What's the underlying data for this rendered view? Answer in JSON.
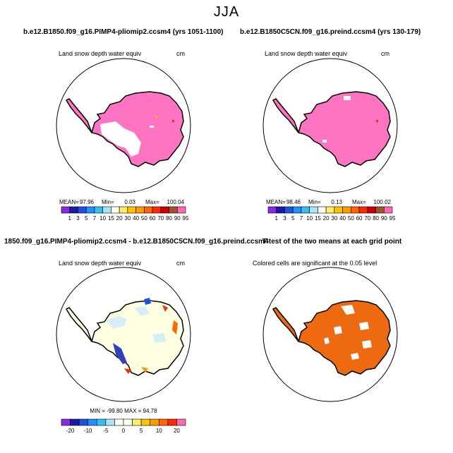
{
  "season": "JJA",
  "panels": [
    {
      "title": "b.e12.B1850.f09_g16.PIMP4-pliomip2.ccsm4 (yrs 1051-1100)",
      "subtitle": "Land snow depth water equiv",
      "units": "cm",
      "stats": {
        "mean_label": "MEAN=",
        "mean": "97.96",
        "min_label": "Min=",
        "min": "0.03",
        "max_label": "Max=",
        "max": "100.04"
      },
      "colorbar": "absolute"
    },
    {
      "title": "b.e12.B1850C5CN.f09_g16.preind.ccsm4 (yrs 130-179)",
      "subtitle": "Land snow depth water equiv",
      "units": "cm",
      "stats": {
        "mean_label": "MEAN=",
        "mean": "98.46",
        "min_label": "Min=",
        "min": "0.13",
        "max_label": "Max=",
        "max": "100.02"
      },
      "colorbar": "absolute"
    },
    {
      "title": "1850.f09_g16.PIMP4-pliomip2.ccsm4 - b.e12.B1850C5CN.f09_g16.preind.ccsm4",
      "subtitle": "Land snow depth water equiv",
      "units": "cm",
      "stats_line": "MIN = -99.80  MAX =  94.78",
      "colorbar": "difference"
    },
    {
      "title": "T-test of the two means at each grid point",
      "subtitle": "Colored cells are significant at the 0.05 level"
    }
  ],
  "colorbars": {
    "absolute": {
      "colors": [
        "#8a2be2",
        "#1a1aa8",
        "#2050e0",
        "#1e90ff",
        "#33c0f0",
        "#a8e4f4",
        "#fffff0",
        "#ffec6a",
        "#ffc400",
        "#ff9a00",
        "#ff6600",
        "#ff2a00",
        "#cc0000",
        "#a0522d",
        "#ff69b4"
      ],
      "labels": [
        "1",
        "3",
        "5",
        "7",
        "10",
        "15",
        "20",
        "30",
        "40",
        "50",
        "60",
        "70",
        "80",
        "90",
        "95"
      ]
    },
    "difference": {
      "colors": [
        "#8a2be2",
        "#1a1aa8",
        "#2050e0",
        "#1e90ff",
        "#33c0f0",
        "#a8e4f4",
        "#fffff0",
        "#fffff0",
        "#ffec6a",
        "#ffc400",
        "#ff9a00",
        "#ff6600",
        "#ff2a00",
        "#ff69b4"
      ],
      "labels": [
        "-20",
        "-10",
        "-5",
        "0",
        "5",
        "10",
        "20"
      ]
    }
  },
  "chart_data": [
    {
      "type": "heatmap",
      "title": "b.e12.B1850.f09_g16.PIMP4-pliomip2.ccsm4 (yrs 1051-1100)",
      "variable": "Land snow depth water equiv",
      "units": "cm",
      "mean": 97.96,
      "min": 0.03,
      "max": 100.04,
      "levels": [
        1,
        3,
        5,
        7,
        10,
        15,
        20,
        30,
        40,
        50,
        60,
        70,
        80,
        90,
        95
      ]
    },
    {
      "type": "heatmap",
      "title": "b.e12.B1850C5CN.f09_g16.preind.ccsm4 (yrs 130-179)",
      "variable": "Land snow depth water equiv",
      "units": "cm",
      "mean": 98.46,
      "min": 0.13,
      "max": 100.02,
      "levels": [
        1,
        3,
        5,
        7,
        10,
        15,
        20,
        30,
        40,
        50,
        60,
        70,
        80,
        90,
        95
      ]
    },
    {
      "type": "heatmap",
      "title": "1850.f09_g16.PIMP4-pliomip2.ccsm4 - b.e12.B1850C5CN.f09_g16.preind.ccsm4",
      "variable": "Land snow depth water equiv",
      "units": "cm",
      "min": -99.8,
      "max": 94.78,
      "levels": [
        -20,
        -10,
        -5,
        0,
        5,
        10,
        20
      ]
    },
    {
      "type": "heatmap",
      "title": "T-test of the two means at each grid point",
      "subtitle": "Colored cells are significant at the 0.05 level"
    }
  ]
}
